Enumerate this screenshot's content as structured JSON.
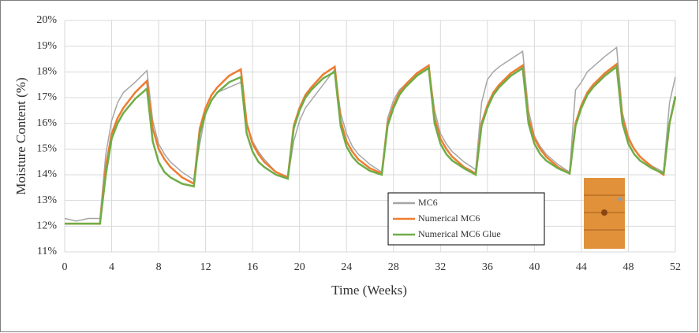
{
  "chart_data": {
    "type": "line",
    "x_label": "Time (Weeks)",
    "y_label": "Moisture Content (%)",
    "x": [
      0,
      1,
      2,
      3,
      3.5,
      4,
      4.5,
      5,
      6,
      7,
      7.5,
      8,
      8.5,
      9,
      10,
      11,
      11.5,
      12,
      12.5,
      13,
      14,
      15,
      15.5,
      16,
      16.5,
      17,
      18,
      19,
      19.5,
      20,
      20.5,
      21,
      22,
      23,
      23.5,
      24,
      24.5,
      25,
      26,
      27,
      27.5,
      28,
      28.5,
      29,
      30,
      31,
      31.5,
      32,
      32.5,
      33,
      34,
      35,
      35.5,
      36,
      36.5,
      37,
      38,
      39,
      39.5,
      40,
      40.5,
      41,
      42,
      43,
      43.5,
      44,
      44.5,
      45,
      46,
      47,
      47.5,
      48,
      48.5,
      49,
      50,
      51,
      51.5,
      52
    ],
    "series": [
      {
        "name": "MC6",
        "color": "#a6a6a6",
        "values": [
          12.3,
          12.2,
          12.3,
          12.3,
          14.8,
          16.1,
          16.8,
          17.2,
          17.6,
          18.05,
          16.1,
          15.2,
          14.8,
          14.5,
          14.1,
          13.8,
          15.2,
          16.4,
          16.9,
          17.2,
          17.4,
          17.6,
          16.0,
          15.3,
          14.9,
          14.6,
          14.1,
          13.85,
          15.3,
          16.1,
          16.6,
          16.9,
          17.5,
          18.1,
          16.4,
          15.6,
          15.1,
          14.8,
          14.4,
          14.1,
          16.2,
          16.9,
          17.3,
          17.5,
          17.9,
          18.25,
          16.5,
          15.6,
          15.2,
          14.9,
          14.5,
          14.2,
          16.8,
          17.7,
          18.0,
          18.2,
          18.5,
          18.8,
          16.5,
          15.5,
          15.1,
          14.8,
          14.4,
          14.1,
          17.3,
          17.6,
          18.0,
          18.2,
          18.6,
          18.95,
          16.4,
          15.5,
          15.0,
          14.7,
          14.35,
          14.1,
          16.8,
          17.8
        ]
      },
      {
        "name": "Numerical MC6",
        "color": "#ed7d31",
        "values": [
          12.1,
          12.1,
          12.1,
          12.1,
          14.3,
          15.6,
          16.2,
          16.6,
          17.2,
          17.65,
          15.8,
          15.0,
          14.6,
          14.3,
          13.9,
          13.65,
          15.8,
          16.6,
          17.1,
          17.4,
          17.85,
          18.1,
          16.0,
          15.2,
          14.8,
          14.5,
          14.1,
          13.9,
          15.9,
          16.6,
          17.1,
          17.4,
          17.9,
          18.2,
          16.1,
          15.3,
          14.9,
          14.6,
          14.25,
          14.05,
          16.0,
          16.7,
          17.2,
          17.5,
          17.95,
          18.25,
          16.2,
          15.4,
          15.0,
          14.7,
          14.3,
          14.05,
          16.0,
          16.7,
          17.2,
          17.5,
          17.95,
          18.25,
          16.2,
          15.4,
          15.0,
          14.7,
          14.3,
          14.05,
          16.0,
          16.7,
          17.2,
          17.5,
          17.95,
          18.3,
          16.2,
          15.4,
          15.0,
          14.7,
          14.3,
          14.0,
          16.0,
          17.0
        ]
      },
      {
        "name": "Numerical MC6 Glue",
        "color": "#70ad47",
        "values": [
          12.1,
          12.1,
          12.1,
          12.1,
          14.0,
          15.4,
          16.0,
          16.4,
          16.95,
          17.35,
          15.3,
          14.5,
          14.1,
          13.9,
          13.65,
          13.55,
          15.6,
          16.4,
          16.9,
          17.2,
          17.6,
          17.8,
          15.6,
          14.9,
          14.5,
          14.3,
          14.0,
          13.85,
          15.8,
          16.5,
          17.0,
          17.3,
          17.75,
          18.0,
          15.9,
          15.1,
          14.7,
          14.45,
          14.15,
          14.0,
          15.9,
          16.6,
          17.1,
          17.4,
          17.85,
          18.15,
          16.0,
          15.2,
          14.8,
          14.55,
          14.25,
          14.0,
          15.9,
          16.6,
          17.1,
          17.4,
          17.85,
          18.15,
          16.0,
          15.2,
          14.8,
          14.55,
          14.25,
          14.05,
          15.9,
          16.6,
          17.1,
          17.4,
          17.85,
          18.2,
          16.0,
          15.2,
          14.8,
          14.55,
          14.25,
          14.05,
          16.0,
          17.05
        ]
      }
    ],
    "xlim": [
      0,
      52
    ],
    "xticks": [
      0,
      4,
      8,
      12,
      16,
      20,
      24,
      28,
      32,
      36,
      40,
      44,
      48,
      52
    ],
    "ylim": [
      11,
      20
    ],
    "yticks": [
      {
        "value": 11,
        "label": "11%"
      },
      {
        "value": 12,
        "label": "12%"
      },
      {
        "value": 13,
        "label": "13%"
      },
      {
        "value": 14,
        "label": "14%"
      },
      {
        "value": 15,
        "label": "15%"
      },
      {
        "value": 16,
        "label": "16%"
      },
      {
        "value": 17,
        "label": "17%"
      },
      {
        "value": 18,
        "label": "18%"
      },
      {
        "value": 19,
        "label": "19%"
      },
      {
        "value": 20,
        "label": "20%"
      }
    ],
    "grid": true
  }
}
